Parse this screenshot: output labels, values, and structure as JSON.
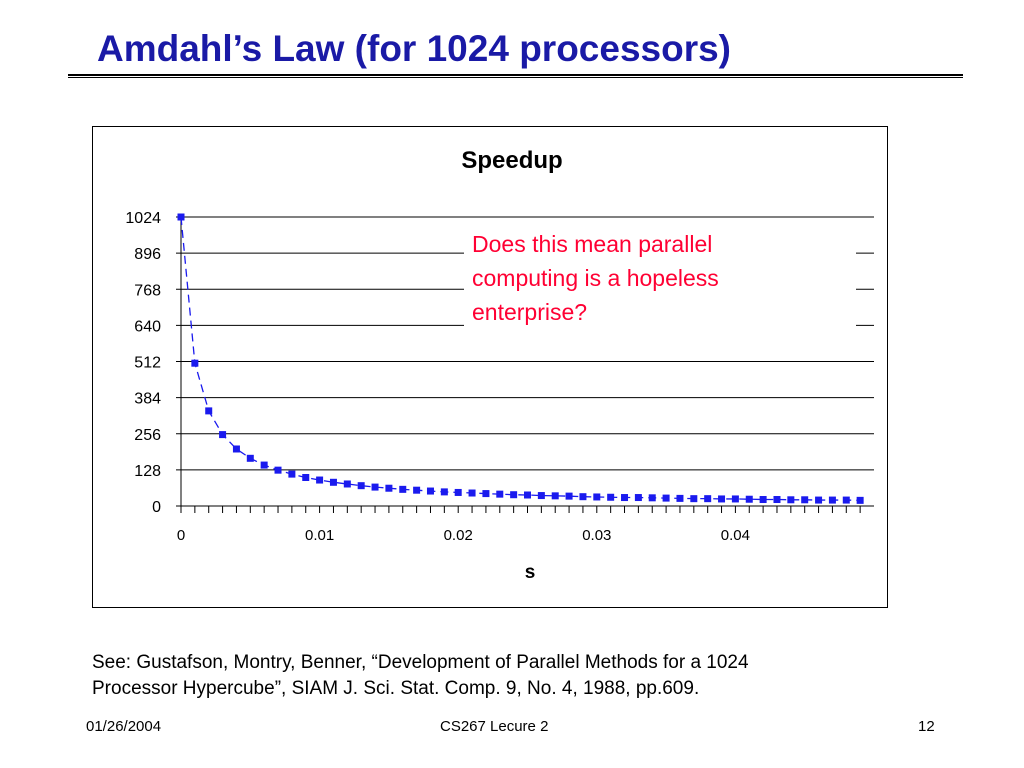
{
  "slide": {
    "title": "Amdahl’s Law (for 1024 processors)",
    "citation_line1": "See: Gustafson, Montry, Benner, “Development of Parallel Methods for a 1024",
    "citation_line2": "Processor Hypercube”, SIAM J. Sci. Stat. Comp. 9, No. 4, 1988, pp.609.",
    "annotation_line1": "Does this mean parallel",
    "annotation_line2": "computing is a hopeless",
    "annotation_line3": "enterprise?",
    "annotation_color": "#ff0033",
    "title_color": "#1a1aa6"
  },
  "footer": {
    "date": "01/26/2004",
    "course": "CS267 Lecure 2",
    "page": "12"
  },
  "chart_data": {
    "type": "line",
    "title": "Speedup",
    "xlabel": "s",
    "ylabel": "",
    "ylim": [
      0,
      1024
    ],
    "xlim": [
      0,
      0.05
    ],
    "y_ticks": [
      0,
      128,
      256,
      384,
      512,
      640,
      768,
      896,
      1024
    ],
    "x_tick_labels": [
      "0",
      "0.01",
      "0.02",
      "0.03",
      "0.04"
    ],
    "x_tick_values": [
      0,
      0.01,
      0.02,
      0.03,
      0.04
    ],
    "grid": true,
    "series_color": "#1a1aee",
    "series": [
      {
        "x": [
          0,
          0.001,
          0.002,
          0.003,
          0.004,
          0.005,
          0.006,
          0.007,
          0.008,
          0.009,
          0.01,
          0.011,
          0.012,
          0.013,
          0.014,
          0.015,
          0.016,
          0.017,
          0.018,
          0.019,
          0.02,
          0.021,
          0.022,
          0.023,
          0.024,
          0.025,
          0.026,
          0.027,
          0.028,
          0.029,
          0.03,
          0.031,
          0.032,
          0.033,
          0.034,
          0.035,
          0.036,
          0.037,
          0.038,
          0.039,
          0.04,
          0.041,
          0.042,
          0.043,
          0.044,
          0.045,
          0.046,
          0.047,
          0.048,
          0.049
        ],
        "values": [
          1024,
          506,
          337,
          253,
          202,
          169,
          145,
          127,
          113,
          101,
          92,
          84,
          78,
          72,
          67,
          63,
          59,
          56,
          53,
          50,
          48,
          46,
          44,
          42,
          40,
          39,
          37,
          36,
          35,
          33,
          32,
          31,
          30,
          30,
          29,
          28,
          27,
          26,
          26,
          25,
          25,
          24,
          23,
          23,
          22,
          22,
          21,
          21,
          21,
          20
        ]
      }
    ]
  }
}
